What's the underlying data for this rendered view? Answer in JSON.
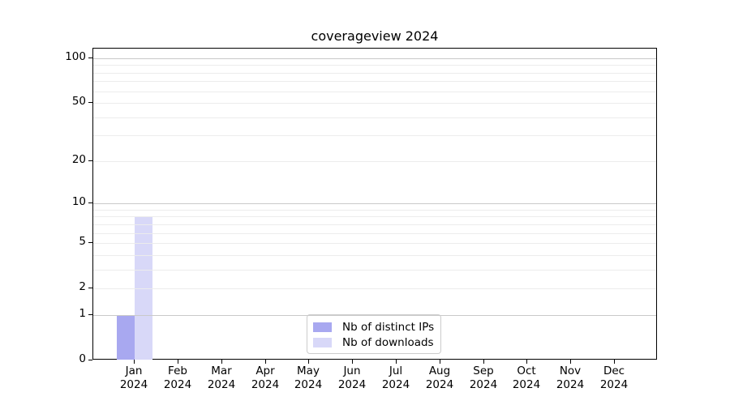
{
  "chart_data": {
    "type": "bar",
    "title": "coverageview 2024",
    "months": [
      "Jan",
      "Feb",
      "Mar",
      "Apr",
      "May",
      "Jun",
      "Jul",
      "Aug",
      "Sep",
      "Oct",
      "Nov",
      "Dec"
    ],
    "year": "2024",
    "series": [
      {
        "name": "Nb of distinct IPs",
        "color": "#a8a8f0",
        "values": [
          1,
          0,
          0,
          0,
          0,
          0,
          0,
          0,
          0,
          0,
          0,
          0
        ]
      },
      {
        "name": "Nb of downloads",
        "color": "#d8d8f8",
        "values": [
          8,
          0,
          0,
          0,
          0,
          0,
          0,
          0,
          0,
          0,
          0,
          0
        ]
      }
    ],
    "yscale": "log1p",
    "ylim": [
      0,
      116
    ],
    "yticks": [
      0,
      1,
      2,
      5,
      10,
      20,
      50,
      100
    ],
    "major_gridlines": [
      1,
      10,
      100
    ],
    "minor_gridlines": [
      2,
      3,
      4,
      5,
      6,
      7,
      8,
      9,
      20,
      30,
      40,
      50,
      60,
      70,
      80,
      90
    ],
    "legend_position": "lower center",
    "grid": true,
    "colors": {
      "axis": "#000000",
      "major_grid": "#c9c9c9",
      "minor_grid": "#ececec",
      "legend_border": "#cccccc",
      "background": "#ffffff"
    }
  }
}
